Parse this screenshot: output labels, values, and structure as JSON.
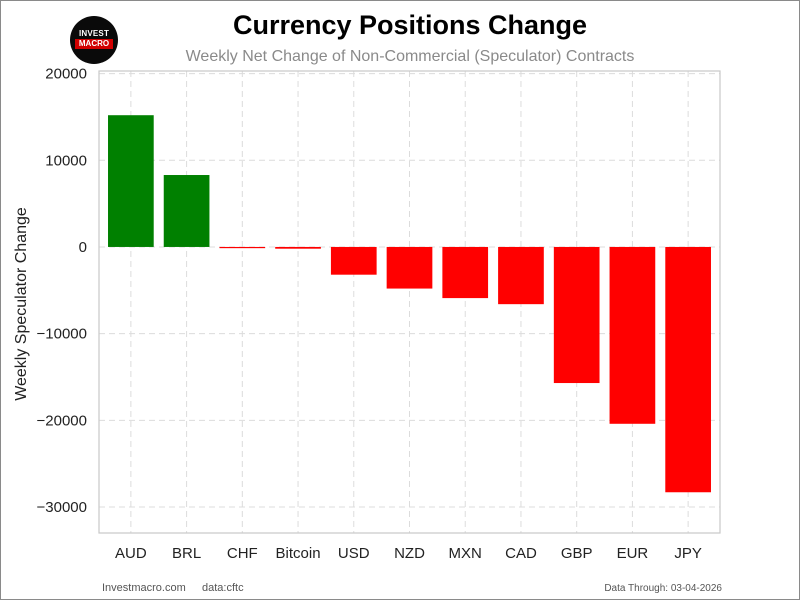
{
  "header": {
    "logo_top": "INVEST",
    "logo_bottom": "MACRO",
    "title": "Currency Positions Change",
    "subtitle": "Weekly Net Change of Non-Commercial (Speculator) Contracts"
  },
  "footer": {
    "site": "Investmacro.com",
    "source": "data:cftc",
    "date": "Data Through: 03-04-2026"
  },
  "colors": {
    "positive": "#008000",
    "negative": "#ff0000",
    "grid": "#dcdcdc"
  },
  "chart_data": {
    "type": "bar",
    "title": "Currency Positions Change",
    "subtitle": "Weekly Net Change of Non-Commercial (Speculator) Contracts",
    "xlabel": "",
    "ylabel": "Weekly Speculator Change",
    "categories": [
      "AUD",
      "BRL",
      "CHF",
      "Bitcoin",
      "USD",
      "NZD",
      "MXN",
      "CAD",
      "GBP",
      "EUR",
      "JPY"
    ],
    "values": [
      15200,
      8300,
      -100,
      -200,
      -3200,
      -4800,
      -5900,
      -6600,
      -15700,
      -20400,
      -28300
    ],
    "ylim": [
      -33000,
      20300
    ],
    "yticks": [
      20000,
      10000,
      0,
      -10000,
      -20000,
      -30000
    ],
    "ytick_labels": [
      "20000",
      "10000",
      "0",
      "−10000",
      "−20000",
      "−30000"
    ],
    "grid": true,
    "legend": "none"
  }
}
